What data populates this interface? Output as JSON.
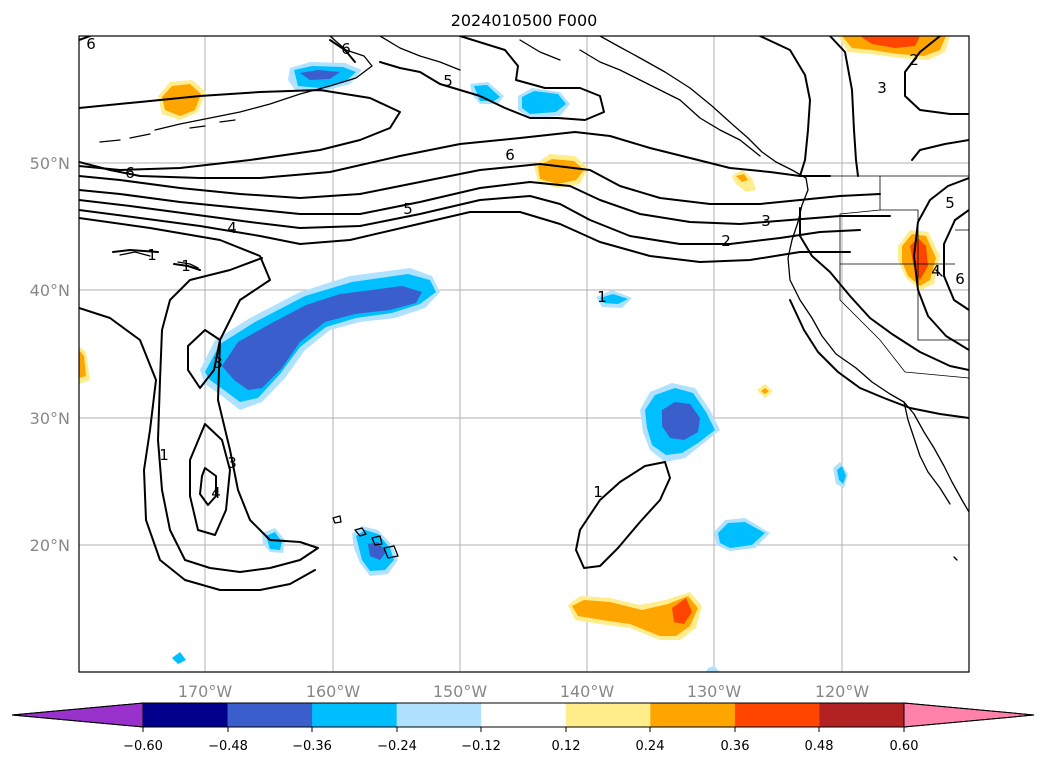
{
  "title": "2024010500 F000",
  "lat_labels": [
    "50°N",
    "40°N",
    "30°N",
    "20°N"
  ],
  "lon_labels": [
    "170°W",
    "160°W",
    "150°W",
    "140°W",
    "130°W",
    "120°W"
  ],
  "colorbar": {
    "colors": [
      "#9932cc",
      "#00008b",
      "#3a5fcd",
      "#00bfff",
      "#b0e2ff",
      "#ffffff",
      "#ffec8b",
      "#ffa500",
      "#ff4500",
      "#b22222",
      "#ff82ab"
    ],
    "ticks": [
      "−0.60",
      "−0.48",
      "−0.36",
      "−0.24",
      "−0.12",
      "0.12",
      "0.24",
      "0.36",
      "0.48",
      "0.60"
    ]
  },
  "contour_labels": [
    "6",
    "6",
    "5",
    "6",
    "5",
    "4",
    "3",
    "2",
    "1",
    "1",
    "1",
    "3",
    "4",
    "3",
    "6",
    "5",
    "2",
    "3",
    "1",
    "1",
    "6",
    "4"
  ]
}
